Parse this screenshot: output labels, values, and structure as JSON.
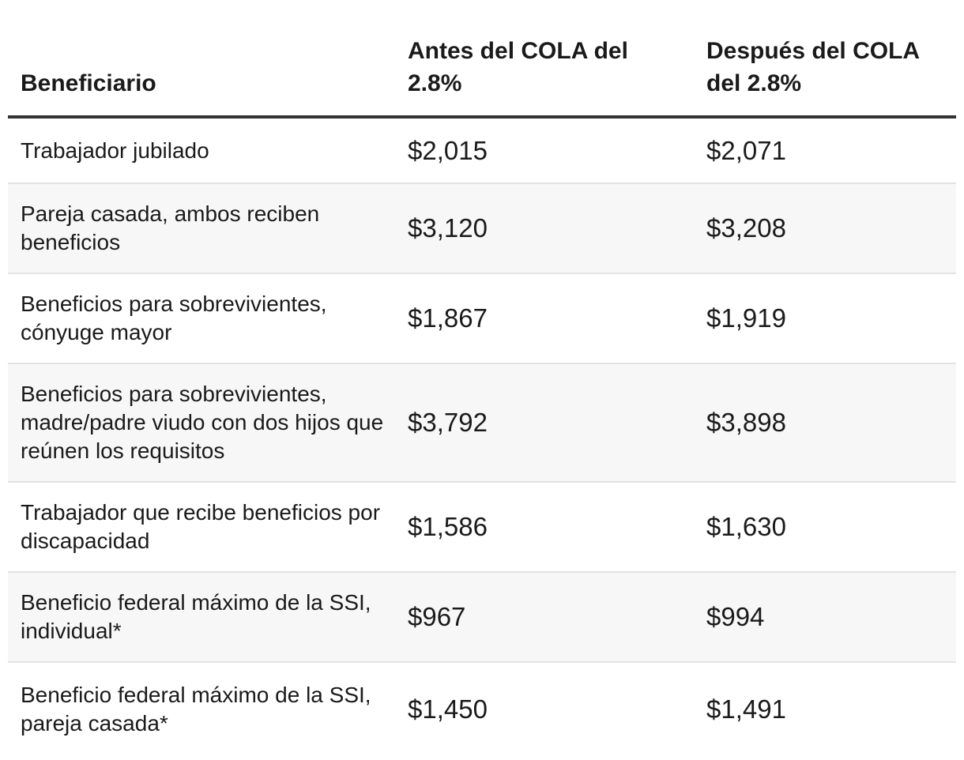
{
  "table": {
    "headers": {
      "beneficiary": "Beneficiario",
      "before": "Antes del COLA del 2.8%",
      "after": "Después del COLA del 2.8%"
    },
    "rows": [
      {
        "beneficiary": "Trabajador jubilado",
        "before": "$2,015",
        "after": "$2,071"
      },
      {
        "beneficiary": "Pareja casada, ambos reciben beneficios",
        "before": "$3,120",
        "after": "$3,208"
      },
      {
        "beneficiary": "Beneficios para sobrevivientes, cónyuge mayor",
        "before": "$1,867",
        "after": "$1,919"
      },
      {
        "beneficiary": "Beneficios para sobrevivientes, madre/padre viudo con dos hijos que reúnen los requisitos",
        "before": "$3,792",
        "after": "$3,898"
      },
      {
        "beneficiary": "Trabajador que recibe beneficios por discapacidad",
        "before": "$1,586",
        "after": "$1,630"
      },
      {
        "beneficiary": "Beneficio federal máximo de la SSI, individual*",
        "before": "$967",
        "after": "$994"
      },
      {
        "beneficiary": "Beneficio federal máximo de la SSI, pareja casada*",
        "before": "$1,450",
        "after": "$1,491"
      }
    ]
  }
}
